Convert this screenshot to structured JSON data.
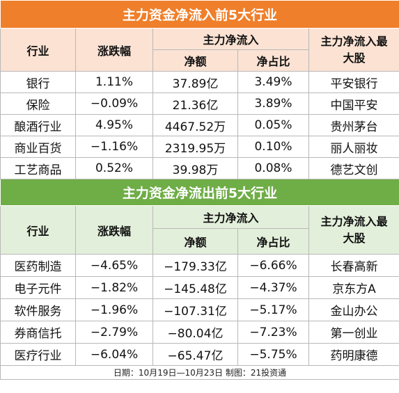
{
  "inflow": {
    "title": "主力资金净流入前5大行业",
    "headers": {
      "industry": "行业",
      "change": "涨跌幅",
      "net_group": "主力净流入",
      "amount": "净额",
      "ratio": "净占比",
      "top_stock": "主力净流入最大股"
    },
    "rows": [
      {
        "industry": "银行",
        "change": "1.11%",
        "amount": "37.89亿",
        "ratio": "3.49%",
        "stock": "平安银行"
      },
      {
        "industry": "保险",
        "change": "−0.09%",
        "amount": "21.36亿",
        "ratio": "3.89%",
        "stock": "中国平安"
      },
      {
        "industry": "酿酒行业",
        "change": "4.95%",
        "amount": "4467.52万",
        "ratio": "0.05%",
        "stock": "贵州茅台"
      },
      {
        "industry": "商业百货",
        "change": "−1.16%",
        "amount": "2319.95万",
        "ratio": "0.10%",
        "stock": "丽人丽妆"
      },
      {
        "industry": "工艺商品",
        "change": "0.52%",
        "amount": "39.98万",
        "ratio": "0.08%",
        "stock": "德艺文创"
      }
    ]
  },
  "outflow": {
    "title": "主力资金净流出前5大行业",
    "headers": {
      "industry": "行业",
      "change": "涨跌幅",
      "net_group": "主力净流入",
      "amount": "净额",
      "ratio": "净占比",
      "top_stock": "主力净流入最大股"
    },
    "rows": [
      {
        "industry": "医药制造",
        "change": "−4.65%",
        "amount": "−179.33亿",
        "ratio": "−6.66%",
        "stock": "长春高新"
      },
      {
        "industry": "电子元件",
        "change": "−1.82%",
        "amount": "−145.48亿",
        "ratio": "−4.37%",
        "stock": "京东方A"
      },
      {
        "industry": "软件服务",
        "change": "−1.96%",
        "amount": "−107.31亿",
        "ratio": "−5.17%",
        "stock": "金山办公"
      },
      {
        "industry": "券商信托",
        "change": "−2.79%",
        "amount": "−80.04亿",
        "ratio": "−7.23%",
        "stock": "第一创业"
      },
      {
        "industry": "医疗行业",
        "change": "−6.04%",
        "amount": "−65.47亿",
        "ratio": "−5.75%",
        "stock": "药明康德"
      }
    ]
  },
  "footer": "日期：10月19日—10月23日 制图：21投资通",
  "colors": {
    "inflow_title_bg": "#ef7f2a",
    "inflow_header_bg": "#fbe2d3",
    "outflow_title_bg": "#6fad47",
    "outflow_header_bg": "#e2efda"
  }
}
